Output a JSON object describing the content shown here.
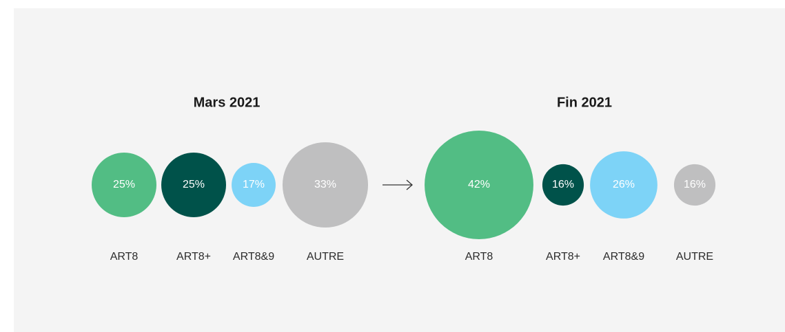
{
  "chart_data": [
    {
      "type": "bubble",
      "title": "Mars 2021",
      "categories": [
        "ART8",
        "ART8+",
        "ART8&9",
        "AUTRE"
      ],
      "values": [
        25,
        25,
        17,
        33
      ],
      "value_labels": [
        "25%",
        "25%",
        "17%",
        "33%"
      ],
      "colors": [
        "#52bd84",
        "#00524a",
        "#7dd3f7",
        "#bfbfc0"
      ]
    },
    {
      "type": "bubble",
      "title": "Fin 2021",
      "categories": [
        "ART8",
        "ART8+",
        "ART8&9",
        "AUTRE"
      ],
      "values": [
        42,
        16,
        26,
        16
      ],
      "value_labels": [
        "42%",
        "16%",
        "26%",
        "16%"
      ],
      "colors": [
        "#52bd84",
        "#00524a",
        "#7dd3f7",
        "#bfbfc0"
      ]
    }
  ]
}
